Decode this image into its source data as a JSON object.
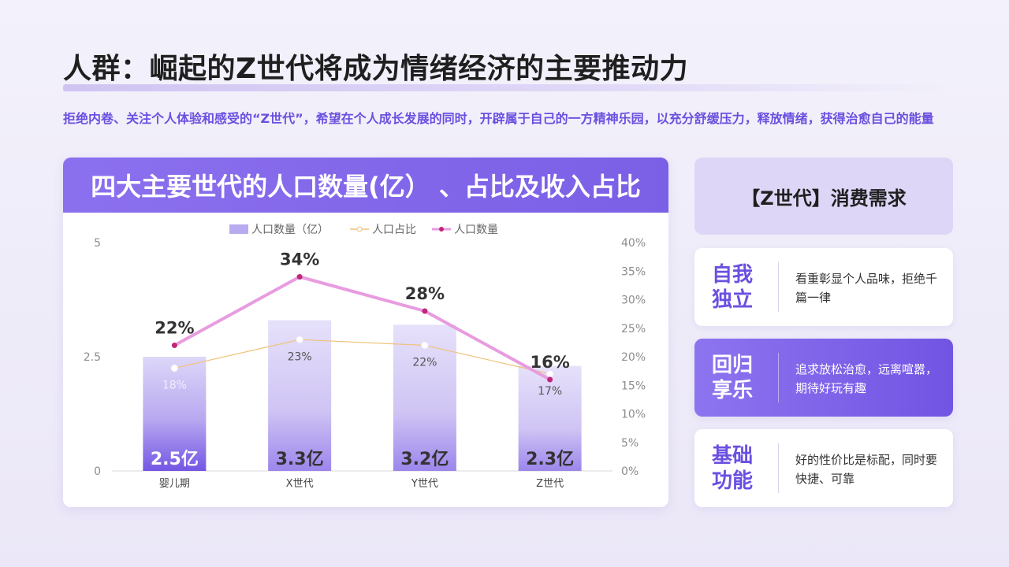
{
  "page": {
    "title": "人群：崛起的Z世代将成为情绪经济的主要推动力",
    "subtitle": "拒绝内卷、关注个人体验和感受的“Z世代”，希望在个人成长发展的同时，开辟属于自己的一方精神乐园，以充分舒缓压力，释放情绪，获得治愈自己的能量"
  },
  "chart_card": {
    "header": "四大主要世代的人口数量(亿） 、占比及收入占比"
  },
  "chart_data": {
    "type": "bar",
    "categories": [
      "婴儿期",
      "X世代",
      "Y世代",
      "Z世代"
    ],
    "legend": [
      "人口数量（亿）",
      "人口占比",
      "人口数量"
    ],
    "legend_position": "top",
    "series": [
      {
        "name": "人口数量（亿）",
        "type": "bar",
        "axis": "left",
        "values": [
          2.5,
          3.3,
          3.2,
          2.3
        ],
        "labels": [
          "2.5亿",
          "3.3亿",
          "3.2亿",
          "2.3亿"
        ]
      },
      {
        "name": "人口占比",
        "type": "line",
        "axis": "right",
        "values": [
          0.18,
          0.23,
          0.22,
          0.17
        ],
        "labels": [
          "18%",
          "23%",
          "22%",
          "17%"
        ]
      },
      {
        "name": "人口数量",
        "type": "line",
        "axis": "right",
        "values": [
          0.22,
          0.34,
          0.28,
          0.16
        ],
        "labels": [
          "22%",
          "34%",
          "28%",
          "16%"
        ]
      }
    ],
    "y_left": {
      "ylim": [
        0,
        5
      ],
      "ticks": [
        "0",
        "2.5",
        "5"
      ]
    },
    "y_right": {
      "ylim": [
        0,
        0.4
      ],
      "ticks": [
        "0%",
        "5%",
        "10%",
        "15%",
        "20%",
        "25%",
        "30%",
        "35%",
        "40%"
      ]
    },
    "grid": false,
    "colors": {
      "bar_top": "#d9d2f7",
      "bar_bottom": "#7456e4",
      "line_share": "#f0c27a",
      "line_count": "#e89ce0",
      "marker_count": "#c0267a"
    }
  },
  "needs": {
    "title": "【Z世代】消费需求",
    "items": [
      {
        "label": "自我独立",
        "desc": "看重彰显个人品味，拒绝千篇一律"
      },
      {
        "label": "回归享乐",
        "desc": "追求放松治愈，远离喧嚣，期待好玩有趣"
      },
      {
        "label": "基础功能",
        "desc": "好的性价比是标配，同时要快捷、可靠"
      }
    ]
  }
}
